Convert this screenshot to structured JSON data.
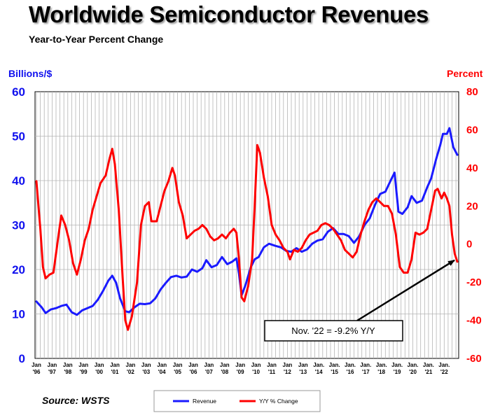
{
  "title": "Worldwide Semiconductor Revenues",
  "subtitle": "Year-to-Year Percent Change",
  "source": "Source: WSTS",
  "colors": {
    "revenue": "#1a1aff",
    "change": "#ff0000",
    "left_axis": "#1010ee",
    "right_axis": "#ff0000"
  },
  "chart_data": {
    "type": "line",
    "title": "Worldwide Semiconductor Revenues",
    "subtitle": "Year-to-Year Percent Change",
    "left_axis": {
      "label": "Billions/$",
      "min": 0,
      "max": 60,
      "ticks": [
        "0",
        "10",
        "20",
        "30",
        "40",
        "50",
        "60"
      ]
    },
    "right_axis": {
      "label": "Percent",
      "min": -60,
      "max": 80,
      "ticks": [
        "-60",
        "-40",
        "-20",
        "0",
        "20",
        "40",
        "60",
        "80"
      ]
    },
    "x_axis": {
      "start": "1996-01",
      "end": "2022-11",
      "ticks": [
        {
          "top": "Jan",
          "bottom": "'96",
          "year": 1996
        },
        {
          "top": "Jan",
          "bottom": "'97",
          "year": 1997
        },
        {
          "top": "Jan",
          "bottom": "'98",
          "year": 1998
        },
        {
          "top": "Jan",
          "bottom": "'99",
          "year": 1999
        },
        {
          "top": "Jan",
          "bottom": "'00",
          "year": 2000
        },
        {
          "top": "Jan",
          "bottom": "'01",
          "year": 2001
        },
        {
          "top": "Jan",
          "bottom": "'02",
          "year": 2002
        },
        {
          "top": "Jan",
          "bottom": "'03",
          "year": 2003
        },
        {
          "top": "Jan",
          "bottom": "'04",
          "year": 2004
        },
        {
          "top": "Jan",
          "bottom": "'05",
          "year": 2005
        },
        {
          "top": "Jan",
          "bottom": "'06",
          "year": 2006
        },
        {
          "top": "Jan",
          "bottom": "'07",
          "year": 2007
        },
        {
          "top": "Jan",
          "bottom": "'08",
          "year": 2008
        },
        {
          "top": "Jan",
          "bottom": "'09",
          "year": 2009
        },
        {
          "top": "Jan",
          "bottom": "'10",
          "year": 2010
        },
        {
          "top": "Jan",
          "bottom": "'11",
          "year": 2011
        },
        {
          "top": "Jan",
          "bottom": "'12",
          "year": 2012
        },
        {
          "top": "Jan",
          "bottom": "'13",
          "year": 2013
        },
        {
          "top": "Jan.",
          "bottom": "'14",
          "year": 2014
        },
        {
          "top": "Jan.",
          "bottom": "'15",
          "year": 2015
        },
        {
          "top": "Jan.",
          "bottom": "'16",
          "year": 2016
        },
        {
          "top": "Jan.",
          "bottom": "'17",
          "year": 2017
        },
        {
          "top": "Jan.",
          "bottom": "'18",
          "year": 2018
        },
        {
          "top": "Jan.",
          "bottom": "'19",
          "year": 2019
        },
        {
          "top": "Jan.",
          "bottom": "'20",
          "year": 2020
        },
        {
          "top": "Jan.",
          "bottom": "'21",
          "year": 2021
        },
        {
          "top": "Jan.",
          "bottom": "'22",
          "year": 2022
        }
      ]
    },
    "grid": true,
    "legend": {
      "placement": "bottom-center",
      "entries": [
        "Revenue",
        "Y/Y % Change"
      ]
    },
    "series": [
      {
        "name": "Revenue",
        "axis": "left",
        "color": "#1a1aff",
        "points": [
          [
            "1996-01",
            12.8
          ],
          [
            "1996-05",
            11.5
          ],
          [
            "1996-08",
            10.2
          ],
          [
            "1996-12",
            11.0
          ],
          [
            "1997-04",
            11.3
          ],
          [
            "1997-08",
            11.8
          ],
          [
            "1997-12",
            12.1
          ],
          [
            "1998-04",
            10.4
          ],
          [
            "1998-08",
            9.8
          ],
          [
            "1998-12",
            10.8
          ],
          [
            "1999-04",
            11.3
          ],
          [
            "1999-08",
            11.8
          ],
          [
            "1999-12",
            13.2
          ],
          [
            "2000-04",
            15.2
          ],
          [
            "2000-08",
            17.5
          ],
          [
            "2000-11",
            18.6
          ],
          [
            "2001-02",
            17.0
          ],
          [
            "2001-05",
            13.5
          ],
          [
            "2001-09",
            10.6
          ],
          [
            "2001-12",
            10.4
          ],
          [
            "2002-04",
            11.5
          ],
          [
            "2002-08",
            12.3
          ],
          [
            "2002-12",
            12.2
          ],
          [
            "2003-04",
            12.4
          ],
          [
            "2003-08",
            13.5
          ],
          [
            "2003-12",
            15.5
          ],
          [
            "2004-04",
            17.0
          ],
          [
            "2004-08",
            18.3
          ],
          [
            "2004-12",
            18.6
          ],
          [
            "2005-04",
            18.2
          ],
          [
            "2005-08",
            18.4
          ],
          [
            "2005-12",
            20.0
          ],
          [
            "2006-04",
            19.5
          ],
          [
            "2006-08",
            20.3
          ],
          [
            "2006-11",
            22.1
          ],
          [
            "2007-03",
            20.5
          ],
          [
            "2007-07",
            21.0
          ],
          [
            "2007-11",
            22.8
          ],
          [
            "2008-03",
            21.2
          ],
          [
            "2008-07",
            21.8
          ],
          [
            "2008-10",
            22.5
          ],
          [
            "2008-12",
            19.0
          ],
          [
            "2009-02",
            14.2
          ],
          [
            "2009-05",
            16.5
          ],
          [
            "2009-09",
            20.5
          ],
          [
            "2009-12",
            22.3
          ],
          [
            "2010-03",
            22.8
          ],
          [
            "2010-07",
            25.0
          ],
          [
            "2010-11",
            25.8
          ],
          [
            "2011-04",
            25.3
          ],
          [
            "2011-08",
            25.0
          ],
          [
            "2011-12",
            24.2
          ],
          [
            "2012-04",
            24.0
          ],
          [
            "2012-08",
            24.8
          ],
          [
            "2012-12",
            24.0
          ],
          [
            "2013-04",
            24.5
          ],
          [
            "2013-08",
            25.8
          ],
          [
            "2013-12",
            26.5
          ],
          [
            "2014-04",
            26.8
          ],
          [
            "2014-08",
            28.5
          ],
          [
            "2014-12",
            29.3
          ],
          [
            "2015-04",
            28.0
          ],
          [
            "2015-08",
            28.0
          ],
          [
            "2015-12",
            27.5
          ],
          [
            "2016-04",
            26.0
          ],
          [
            "2016-08",
            27.5
          ],
          [
            "2016-12",
            30.0
          ],
          [
            "2017-04",
            31.5
          ],
          [
            "2017-08",
            34.5
          ],
          [
            "2017-12",
            37.0
          ],
          [
            "2018-04",
            37.5
          ],
          [
            "2018-08",
            40.0
          ],
          [
            "2018-11",
            41.8
          ],
          [
            "2019-02",
            33.0
          ],
          [
            "2019-05",
            32.5
          ],
          [
            "2019-09",
            34.0
          ],
          [
            "2019-12",
            36.5
          ],
          [
            "2020-04",
            35.0
          ],
          [
            "2020-08",
            35.5
          ],
          [
            "2020-12",
            38.5
          ],
          [
            "2021-03",
            40.5
          ],
          [
            "2021-07",
            45.0
          ],
          [
            "2021-10",
            48.0
          ],
          [
            "2021-12",
            50.5
          ],
          [
            "2022-03",
            50.5
          ],
          [
            "2022-05",
            51.8
          ],
          [
            "2022-08",
            47.5
          ],
          [
            "2022-11",
            45.8
          ]
        ]
      },
      {
        "name": "Y/Y % Change",
        "axis": "right",
        "color": "#ff0000",
        "points": [
          [
            "1996-01",
            33
          ],
          [
            "1996-04",
            8
          ],
          [
            "1996-06",
            -12
          ],
          [
            "1996-08",
            -18
          ],
          [
            "1996-11",
            -16
          ],
          [
            "1997-02",
            -15
          ],
          [
            "1997-06",
            5
          ],
          [
            "1997-08",
            15
          ],
          [
            "1997-11",
            10
          ],
          [
            "1998-02",
            2
          ],
          [
            "1998-05",
            -10
          ],
          [
            "1998-08",
            -16
          ],
          [
            "1998-11",
            -8
          ],
          [
            "1999-02",
            2
          ],
          [
            "1999-05",
            8
          ],
          [
            "1999-08",
            18
          ],
          [
            "1999-11",
            25
          ],
          [
            "2000-02",
            32
          ],
          [
            "2000-06",
            36
          ],
          [
            "2000-09",
            45
          ],
          [
            "2000-11",
            50
          ],
          [
            "2001-01",
            42
          ],
          [
            "2001-04",
            18
          ],
          [
            "2001-07",
            -18
          ],
          [
            "2001-09",
            -40
          ],
          [
            "2001-11",
            -45
          ],
          [
            "2002-02",
            -38
          ],
          [
            "2002-06",
            -20
          ],
          [
            "2002-09",
            10
          ],
          [
            "2002-12",
            20
          ],
          [
            "2003-03",
            22
          ],
          [
            "2003-05",
            12
          ],
          [
            "2003-09",
            12
          ],
          [
            "2003-12",
            20
          ],
          [
            "2004-03",
            28
          ],
          [
            "2004-06",
            33
          ],
          [
            "2004-09",
            40
          ],
          [
            "2004-11",
            36
          ],
          [
            "2005-02",
            22
          ],
          [
            "2005-05",
            15
          ],
          [
            "2005-08",
            3
          ],
          [
            "2005-11",
            5
          ],
          [
            "2006-02",
            7
          ],
          [
            "2006-05",
            8
          ],
          [
            "2006-08",
            10
          ],
          [
            "2006-11",
            8
          ],
          [
            "2007-02",
            4
          ],
          [
            "2007-05",
            2
          ],
          [
            "2007-08",
            3
          ],
          [
            "2007-11",
            5
          ],
          [
            "2008-02",
            3
          ],
          [
            "2008-05",
            6
          ],
          [
            "2008-08",
            8
          ],
          [
            "2008-10",
            6
          ],
          [
            "2008-12",
            -8
          ],
          [
            "2009-02",
            -28
          ],
          [
            "2009-04",
            -30
          ],
          [
            "2009-07",
            -22
          ],
          [
            "2009-10",
            -8
          ],
          [
            "2009-12",
            20
          ],
          [
            "2010-02",
            52
          ],
          [
            "2010-04",
            48
          ],
          [
            "2010-07",
            35
          ],
          [
            "2010-10",
            25
          ],
          [
            "2011-01",
            10
          ],
          [
            "2011-04",
            5
          ],
          [
            "2011-07",
            2
          ],
          [
            "2011-10",
            -2
          ],
          [
            "2012-01",
            -4
          ],
          [
            "2012-03",
            -8
          ],
          [
            "2012-06",
            -3
          ],
          [
            "2012-09",
            -4
          ],
          [
            "2012-12",
            -2
          ],
          [
            "2013-03",
            2
          ],
          [
            "2013-06",
            5
          ],
          [
            "2013-09",
            6
          ],
          [
            "2013-12",
            7
          ],
          [
            "2014-03",
            10
          ],
          [
            "2014-06",
            11
          ],
          [
            "2014-09",
            10
          ],
          [
            "2014-12",
            8
          ],
          [
            "2015-03",
            5
          ],
          [
            "2015-06",
            2
          ],
          [
            "2015-09",
            -3
          ],
          [
            "2015-12",
            -5
          ],
          [
            "2016-03",
            -7
          ],
          [
            "2016-06",
            -4
          ],
          [
            "2016-09",
            5
          ],
          [
            "2016-12",
            12
          ],
          [
            "2017-03",
            18
          ],
          [
            "2017-06",
            22
          ],
          [
            "2017-09",
            24
          ],
          [
            "2017-12",
            22
          ],
          [
            "2018-03",
            20
          ],
          [
            "2018-06",
            20
          ],
          [
            "2018-09",
            16
          ],
          [
            "2018-12",
            5
          ],
          [
            "2019-03",
            -12
          ],
          [
            "2019-06",
            -15
          ],
          [
            "2019-09",
            -15
          ],
          [
            "2019-12",
            -8
          ],
          [
            "2020-03",
            6
          ],
          [
            "2020-06",
            5
          ],
          [
            "2020-09",
            6
          ],
          [
            "2020-12",
            8
          ],
          [
            "2021-03",
            18
          ],
          [
            "2021-06",
            28
          ],
          [
            "2021-08",
            29
          ],
          [
            "2021-11",
            24
          ],
          [
            "2022-01",
            27
          ],
          [
            "2022-03",
            24
          ],
          [
            "2022-05",
            20
          ],
          [
            "2022-07",
            5
          ],
          [
            "2022-09",
            -5
          ],
          [
            "2022-11",
            -9.2
          ]
        ]
      }
    ],
    "annotations": [
      {
        "text": "Nov. '22 = -9.2% Y/Y",
        "points_to": [
          "2022-11",
          -9.2
        ]
      }
    ]
  }
}
